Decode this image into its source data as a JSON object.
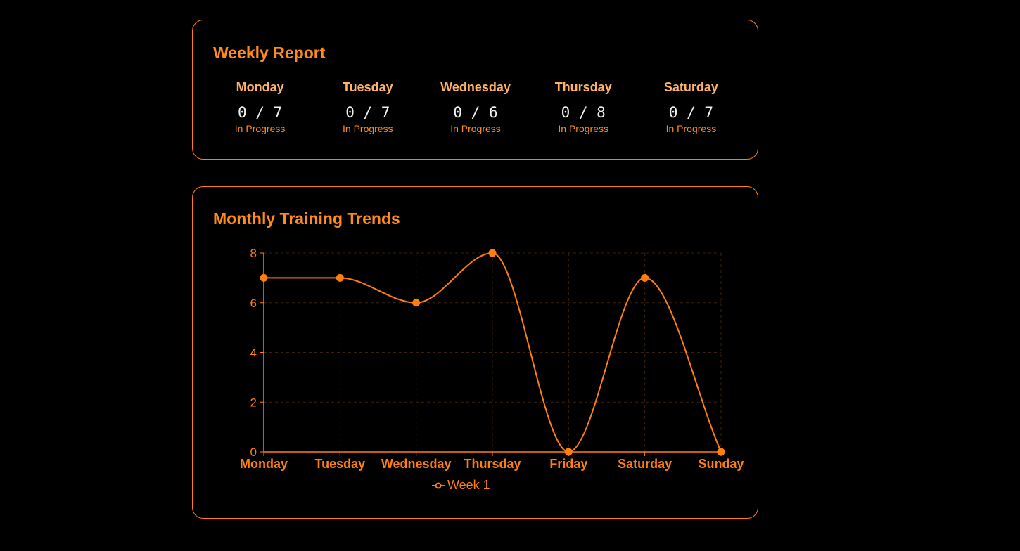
{
  "weekly_report": {
    "title": "Weekly Report",
    "days": [
      {
        "name": "Monday",
        "count": "0 / 7",
        "status": "In Progress"
      },
      {
        "name": "Tuesday",
        "count": "0 / 7",
        "status": "In Progress"
      },
      {
        "name": "Wednesday",
        "count": "0 / 6",
        "status": "In Progress"
      },
      {
        "name": "Thursday",
        "count": "0 / 8",
        "status": "In Progress"
      },
      {
        "name": "Saturday",
        "count": "0 / 7",
        "status": "In Progress"
      }
    ]
  },
  "monthly_trends": {
    "title": "Monthly Training Trends",
    "legend_label": "Week 1"
  },
  "colors": {
    "accent": "#ff7f0e",
    "title": "#ff8c1a",
    "day_name": "#ffb366",
    "count_text": "#f2f2f2",
    "grid": "#3a2208",
    "background": "#000000"
  },
  "chart_data": {
    "type": "line",
    "categories": [
      "Monday",
      "Tuesday",
      "Wednesday",
      "Thursday",
      "Friday",
      "Saturday",
      "Sunday"
    ],
    "series": [
      {
        "name": "Week 1",
        "values": [
          7,
          7,
          6,
          8,
          0,
          7,
          0
        ]
      }
    ],
    "yticks": [
      "0",
      "2",
      "4",
      "6",
      "8"
    ],
    "ylim": [
      0,
      8
    ],
    "grid": true,
    "smooth": true,
    "legend_position": "bottom",
    "title": "",
    "xlabel": "",
    "ylabel": ""
  }
}
